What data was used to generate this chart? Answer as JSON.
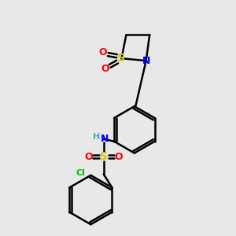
{
  "background_color": "#e8e8e8",
  "atom_colors": {
    "C": "#000000",
    "H": "#4fa8a8",
    "N": "#0000ff",
    "O": "#ff0000",
    "S": "#cccc00",
    "Cl": "#00bb00"
  },
  "bond_color": "#000000",
  "bond_width": 1.8,
  "figsize": [
    3.0,
    3.0
  ],
  "dpi": 100
}
